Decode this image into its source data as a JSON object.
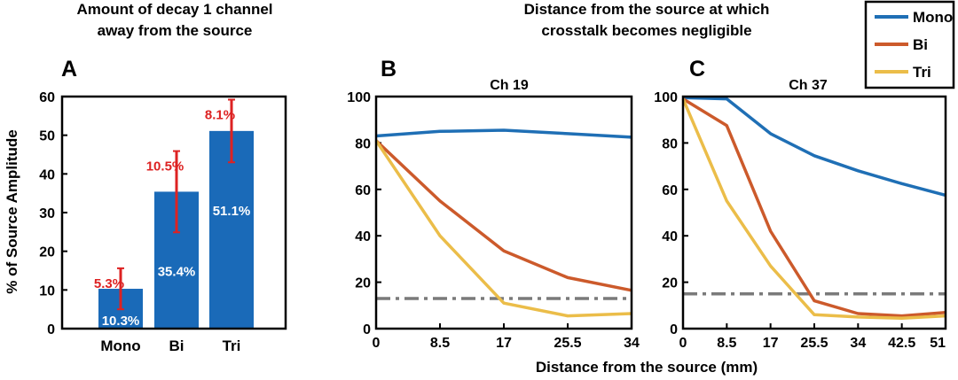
{
  "header_left": {
    "line1": "Amount of decay 1 channel",
    "line2": "away from the source"
  },
  "header_right": {
    "line1": "Distance from the source at which",
    "line2": "crosstalk becomes negligible"
  },
  "colors": {
    "mono": "#1f6fb5",
    "bi": "#cc5a2b",
    "tri": "#ebbd49",
    "error": "#dd2222",
    "bar": "#1a6ab8",
    "threshold": "#7a7a7a"
  },
  "legend": {
    "items": [
      {
        "key": "mono",
        "label": "Mono"
      },
      {
        "key": "bi",
        "label": "Bi"
      },
      {
        "key": "tri",
        "label": "Tri"
      }
    ]
  },
  "xlabel_shared": "Distance from the source (mm)",
  "chart_data": [
    {
      "id": "A",
      "panel_label": "A",
      "type": "bar",
      "title": "Amount of decay 1 channel away from the source",
      "ylabel": "% of Source Amplitude",
      "ylim": [
        0,
        60
      ],
      "yticks": [
        0,
        10,
        20,
        30,
        40,
        50,
        60
      ],
      "categories": [
        "Mono",
        "Bi",
        "Tri"
      ],
      "values": [
        10.3,
        35.4,
        51.1
      ],
      "value_labels": [
        "10.3%",
        "35.4%",
        "51.1%"
      ],
      "errors": [
        5.3,
        10.5,
        8.1
      ],
      "error_labels": [
        "5.3%",
        "10.5%",
        "8.1%"
      ]
    },
    {
      "id": "B",
      "panel_label": "B",
      "type": "line",
      "title": "Ch 19",
      "x": [
        0,
        8.5,
        17,
        25.5,
        34
      ],
      "xticks": [
        "0",
        "8.5",
        "17",
        "25.5",
        "34"
      ],
      "xlim": [
        0,
        34
      ],
      "ylim": [
        0,
        100
      ],
      "yticks": [
        0,
        20,
        40,
        60,
        80,
        100
      ],
      "threshold": 13,
      "series": [
        {
          "name": "Mono",
          "key": "mono",
          "values": [
            83,
            85,
            85.5,
            84,
            82.5
          ]
        },
        {
          "name": "Bi",
          "key": "bi",
          "values": [
            81,
            55,
            33.5,
            22,
            16.5
          ]
        },
        {
          "name": "Tri",
          "key": "tri",
          "values": [
            81,
            40,
            11,
            5.5,
            6.5
          ]
        }
      ]
    },
    {
      "id": "C",
      "panel_label": "C",
      "type": "line",
      "title": "Ch 37",
      "x": [
        0,
        8.5,
        17,
        25.5,
        34,
        42.5,
        51
      ],
      "xticks": [
        "0",
        "8.5",
        "17",
        "25.5",
        "34",
        "42.5",
        "51"
      ],
      "xlim": [
        0,
        51
      ],
      "ylim": [
        0,
        100
      ],
      "yticks": [
        0,
        20,
        40,
        60,
        80,
        100
      ],
      "threshold": 15,
      "series": [
        {
          "name": "Mono",
          "key": "mono",
          "values": [
            99.5,
            99,
            84,
            74.5,
            68,
            62.5,
            57.5
          ]
        },
        {
          "name": "Bi",
          "key": "bi",
          "values": [
            99,
            87.5,
            42,
            12,
            6.5,
            5.5,
            7
          ]
        },
        {
          "name": "Tri",
          "key": "tri",
          "values": [
            99,
            55,
            27,
            6,
            5,
            4.5,
            5.5
          ]
        }
      ]
    }
  ]
}
